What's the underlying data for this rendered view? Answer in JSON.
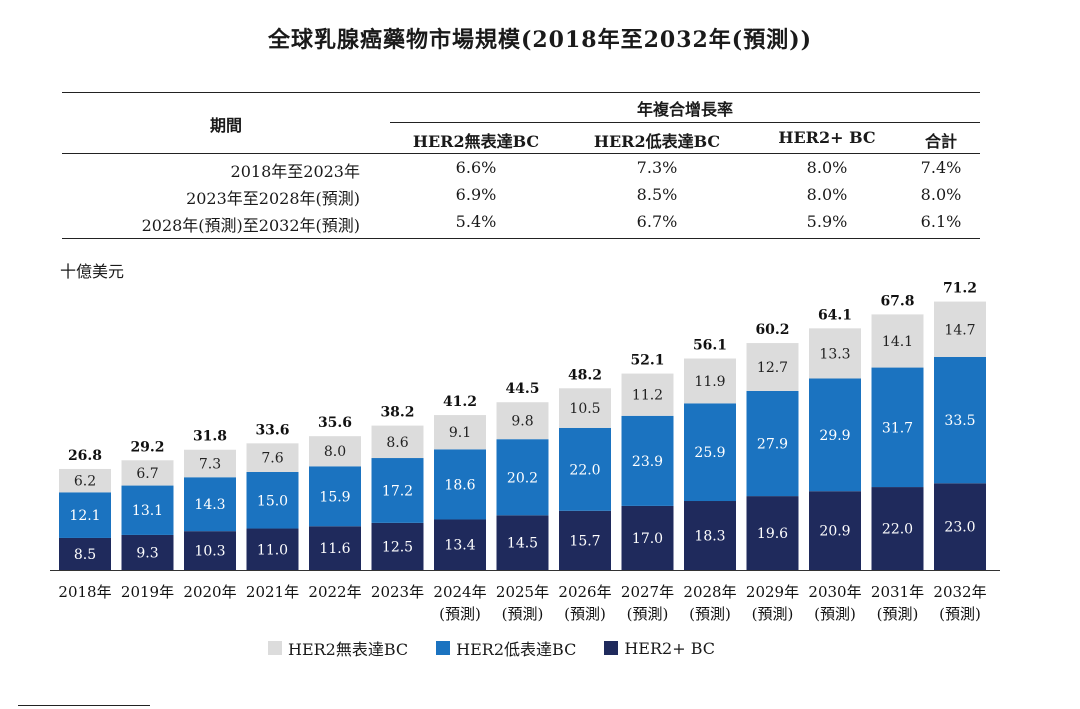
{
  "title": "全球乳腺癌藥物市場規模(2018年至2032年(預測))",
  "table": {
    "period_header": "期間",
    "group_header": "年複合增長率",
    "columns": [
      "HER2無表達BC",
      "HER2低表達BC",
      "HER2+ BC",
      "合計"
    ],
    "rows": [
      {
        "period": "2018年至2023年",
        "values": [
          "6.6%",
          "7.3%",
          "8.0%",
          "7.4%"
        ]
      },
      {
        "period": "2023年至2028年(預測)",
        "values": [
          "6.9%",
          "8.5%",
          "8.0%",
          "8.0%"
        ]
      },
      {
        "period": "2028年(預測)至2032年(預測)",
        "values": [
          "5.4%",
          "6.7%",
          "5.9%",
          "6.1%"
        ]
      }
    ]
  },
  "chart_data": {
    "type": "bar",
    "stacked": true,
    "unit_label": "十億美元",
    "categories": [
      "2018年",
      "2019年",
      "2020年",
      "2021年",
      "2022年",
      "2023年",
      "2024年",
      "2025年",
      "2026年",
      "2027年",
      "2028年",
      "2029年",
      "2030年",
      "2031年",
      "2032年"
    ],
    "forecast_labels": [
      "",
      "",
      "",
      "",
      "",
      "",
      "(預測)",
      "(預測)",
      "(預測)",
      "(預測)",
      "(預測)",
      "(預測)",
      "(預測)",
      "(預測)",
      "(預測)"
    ],
    "series": [
      {
        "name": "HER2+ BC",
        "color": "#1f2a5c",
        "values": [
          8.5,
          9.3,
          10.3,
          11.0,
          11.6,
          12.5,
          13.4,
          14.5,
          15.7,
          17.0,
          18.3,
          19.6,
          20.9,
          22.0,
          23.0
        ]
      },
      {
        "name": "HER2低表達BC",
        "color": "#1b73c0",
        "values": [
          12.1,
          13.1,
          14.3,
          15.0,
          15.9,
          17.2,
          18.6,
          20.2,
          22.0,
          23.9,
          25.9,
          27.9,
          29.9,
          31.7,
          33.5
        ]
      },
      {
        "name": "HER2無表達BC",
        "color": "#dcdcdc",
        "values": [
          6.2,
          6.7,
          7.3,
          7.6,
          8.0,
          8.6,
          9.1,
          9.8,
          10.5,
          11.2,
          11.9,
          12.7,
          13.3,
          14.1,
          14.7
        ]
      }
    ],
    "totals": [
      26.8,
      29.2,
      31.8,
      33.6,
      35.6,
      38.2,
      41.2,
      44.5,
      48.2,
      52.1,
      56.1,
      60.2,
      64.1,
      67.8,
      71.2
    ],
    "legend": [
      "HER2無表達BC",
      "HER2低表達BC",
      "HER2+ BC"
    ],
    "ylim": [
      0,
      75
    ]
  }
}
